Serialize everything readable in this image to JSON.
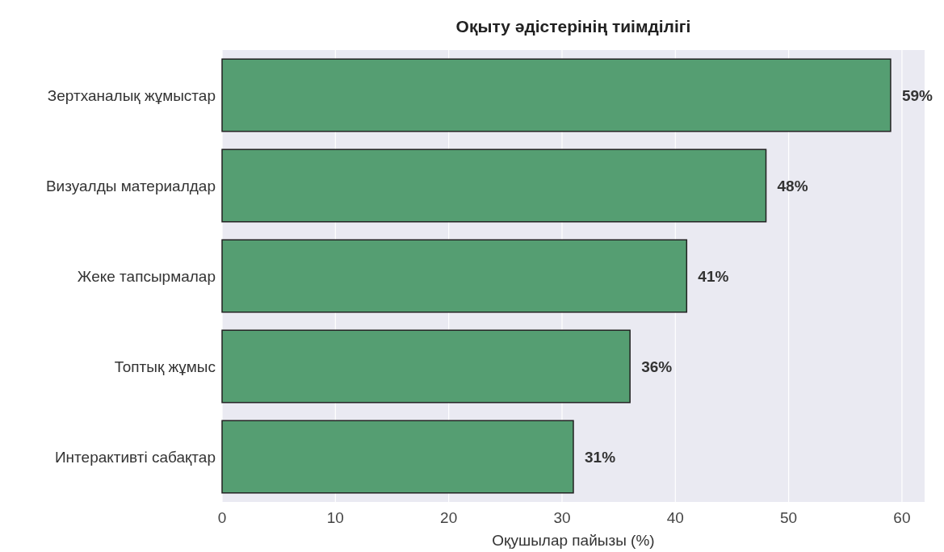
{
  "chart_data": {
    "type": "bar",
    "orientation": "horizontal",
    "title": "Оқыту әдістерінің тиімділігі",
    "xlabel": "Оқушылар пайызы (%)",
    "categories": [
      "Зертханалық жұмыстар",
      "Визуалды материалдар",
      "Жеке тапсырмалар",
      "Топтық жұмыс",
      "Интерактивті сабақтар"
    ],
    "values": [
      59,
      48,
      41,
      36,
      31
    ],
    "value_labels": [
      "59%",
      "48%",
      "41%",
      "36%",
      "31%"
    ],
    "color": "#559e72",
    "xlim": [
      0,
      62
    ],
    "xticks": [
      0,
      10,
      20,
      30,
      40,
      50,
      60
    ],
    "grid": "x"
  }
}
